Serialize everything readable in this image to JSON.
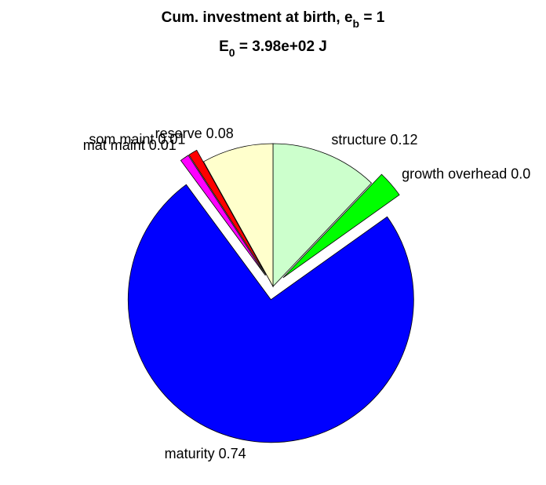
{
  "chart_data": {
    "type": "pie",
    "title": {
      "line1": {
        "text": "Cum. investment at birth, e",
        "sub": "b",
        "after": " = 1"
      },
      "line2": {
        "text": "E",
        "sub": "0",
        "after": " = 3.98e+02 J"
      }
    },
    "categories": [
      "structure",
      "growth overhead",
      "maturity",
      "mat maint",
      "som maint",
      "reserve"
    ],
    "values": [
      0.12,
      0.03,
      0.74,
      0.01,
      0.01,
      0.08
    ],
    "value_labels": [
      "structure 0.12",
      "growth overhead 0.0",
      "maturity 0.74",
      "mat maint 0.01",
      "som maint 0.01",
      "reserve 0.08"
    ],
    "colors": [
      "#ccffcc",
      "#00ff00",
      "#0000ff",
      "#ff00ff",
      "#ff0000",
      "#ffffcc"
    ],
    "explode": [
      0,
      1,
      1,
      1,
      1,
      0
    ]
  }
}
